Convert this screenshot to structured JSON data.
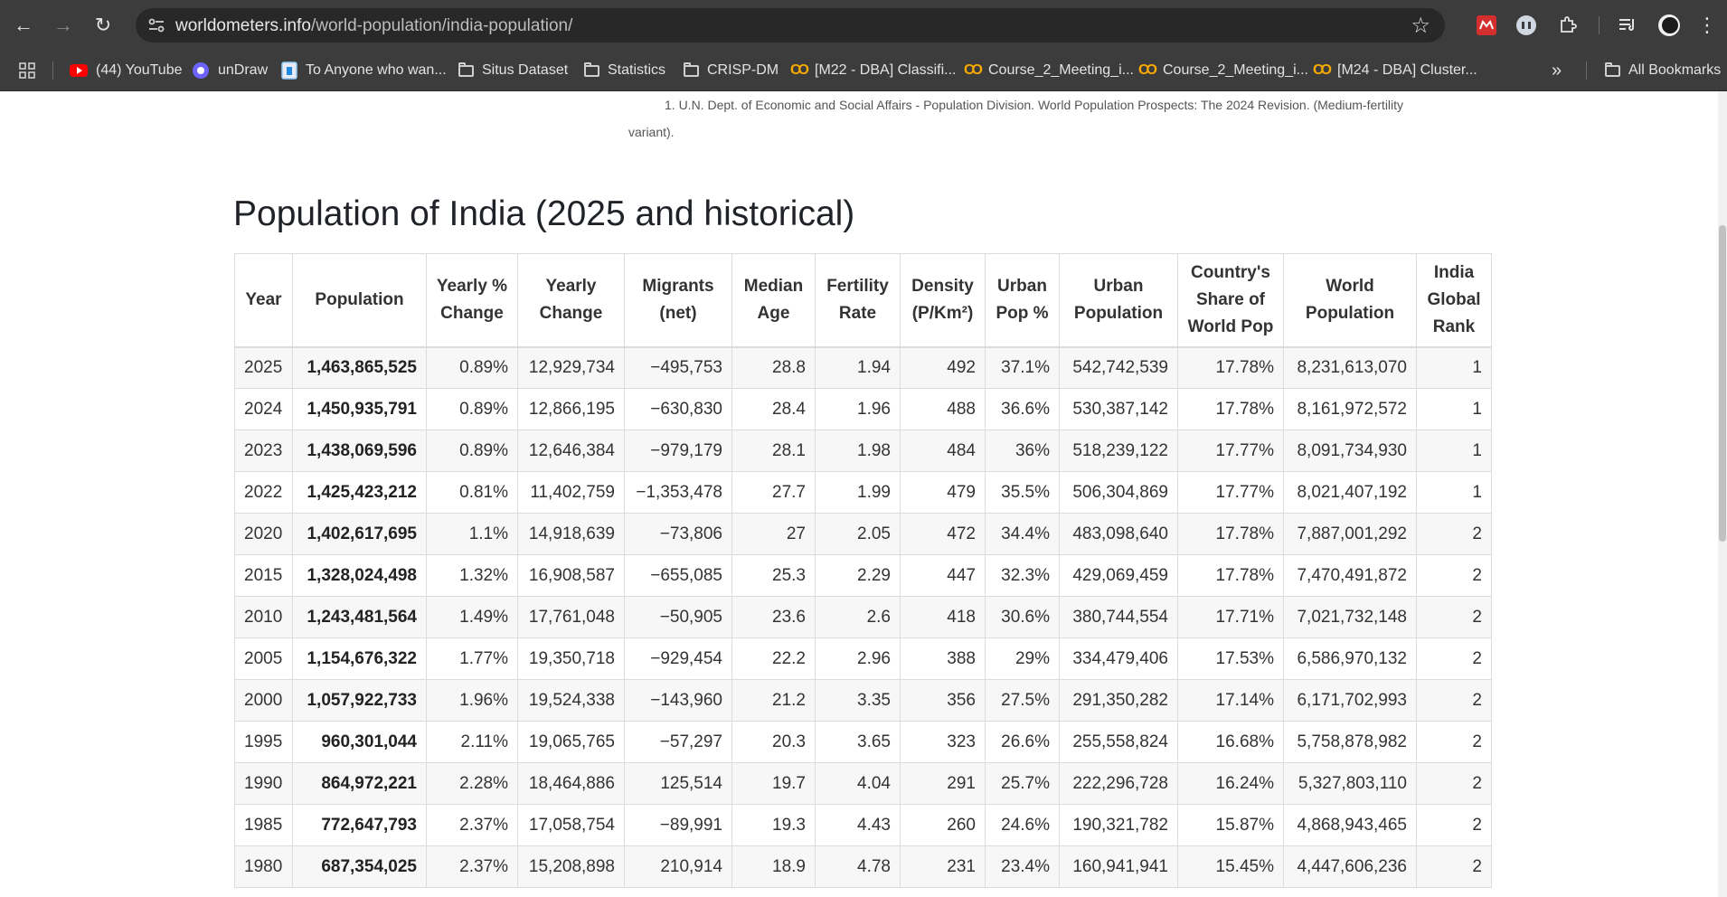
{
  "browser": {
    "url_host": "worldometers.info",
    "url_path": "/world-population/india-population/",
    "bookmarks": [
      {
        "label": "(44) YouTube",
        "icon": "youtube-icon"
      },
      {
        "label": "unDraw",
        "icon": "undraw-icon"
      },
      {
        "label": "To Anyone who wan...",
        "icon": "page-icon"
      },
      {
        "label": "Situs Dataset",
        "icon": "folder-icon"
      },
      {
        "label": "Statistics",
        "icon": "folder-icon"
      },
      {
        "label": "CRISP-DM",
        "icon": "folder-icon"
      },
      {
        "label": "[M22 - DBA] Classifi...",
        "icon": "colab-icon"
      },
      {
        "label": "Course_2_Meeting_i...",
        "icon": "colab-icon"
      },
      {
        "label": "Course_2_Meeting_i...",
        "icon": "colab-icon"
      },
      {
        "label": "[M24 - DBA] Cluster...",
        "icon": "colab-icon"
      }
    ],
    "overflow_label": "»",
    "all_bookmarks_label": "All Bookmarks"
  },
  "page": {
    "footnote_line1": "1. U.N. Dept. of Economic and Social Affairs - Population Division. World Population Prospects: The 2024 Revision. (Medium-fertility",
    "footnote_line2": "variant).",
    "title": "Population of India (2025 and historical)"
  },
  "table": {
    "headers": [
      [
        "Year"
      ],
      [
        "Population"
      ],
      [
        "Yearly %",
        "Change"
      ],
      [
        "Yearly",
        "Change"
      ],
      [
        "Migrants",
        "(net)"
      ],
      [
        "Median",
        "Age"
      ],
      [
        "Fertility",
        "Rate"
      ],
      [
        "Density",
        "(P/Km²)"
      ],
      [
        "Urban",
        "Pop %"
      ],
      [
        "Urban",
        "Population"
      ],
      [
        "Country's",
        "Share of",
        "World Pop"
      ],
      [
        "World",
        "Population"
      ],
      [
        "India",
        "Global",
        "Rank"
      ]
    ],
    "rows": [
      [
        "2025",
        "1,463,865,525",
        "0.89%",
        "12,929,734",
        "−495,753",
        "28.8",
        "1.94",
        "492",
        "37.1%",
        "542,742,539",
        "17.78%",
        "8,231,613,070",
        "1"
      ],
      [
        "2024",
        "1,450,935,791",
        "0.89%",
        "12,866,195",
        "−630,830",
        "28.4",
        "1.96",
        "488",
        "36.6%",
        "530,387,142",
        "17.78%",
        "8,161,972,572",
        "1"
      ],
      [
        "2023",
        "1,438,069,596",
        "0.89%",
        "12,646,384",
        "−979,179",
        "28.1",
        "1.98",
        "484",
        "36%",
        "518,239,122",
        "17.77%",
        "8,091,734,930",
        "1"
      ],
      [
        "2022",
        "1,425,423,212",
        "0.81%",
        "11,402,759",
        "−1,353,478",
        "27.7",
        "1.99",
        "479",
        "35.5%",
        "506,304,869",
        "17.77%",
        "8,021,407,192",
        "1"
      ],
      [
        "2020",
        "1,402,617,695",
        "1.1%",
        "14,918,639",
        "−73,806",
        "27",
        "2.05",
        "472",
        "34.4%",
        "483,098,640",
        "17.78%",
        "7,887,001,292",
        "2"
      ],
      [
        "2015",
        "1,328,024,498",
        "1.32%",
        "16,908,587",
        "−655,085",
        "25.3",
        "2.29",
        "447",
        "32.3%",
        "429,069,459",
        "17.78%",
        "7,470,491,872",
        "2"
      ],
      [
        "2010",
        "1,243,481,564",
        "1.49%",
        "17,761,048",
        "−50,905",
        "23.6",
        "2.6",
        "418",
        "30.6%",
        "380,744,554",
        "17.71%",
        "7,021,732,148",
        "2"
      ],
      [
        "2005",
        "1,154,676,322",
        "1.77%",
        "19,350,718",
        "−929,454",
        "22.2",
        "2.96",
        "388",
        "29%",
        "334,479,406",
        "17.53%",
        "6,586,970,132",
        "2"
      ],
      [
        "2000",
        "1,057,922,733",
        "1.96%",
        "19,524,338",
        "−143,960",
        "21.2",
        "3.35",
        "356",
        "27.5%",
        "291,350,282",
        "17.14%",
        "6,171,702,993",
        "2"
      ],
      [
        "1995",
        "960,301,044",
        "2.11%",
        "19,065,765",
        "−57,297",
        "20.3",
        "3.65",
        "323",
        "26.6%",
        "255,558,824",
        "16.68%",
        "5,758,878,982",
        "2"
      ],
      [
        "1990",
        "864,972,221",
        "2.28%",
        "18,464,886",
        "125,514",
        "19.7",
        "4.04",
        "291",
        "25.7%",
        "222,296,728",
        "16.24%",
        "5,327,803,110",
        "2"
      ],
      [
        "1985",
        "772,647,793",
        "2.37%",
        "17,058,754",
        "−89,991",
        "19.3",
        "4.43",
        "260",
        "24.6%",
        "190,321,782",
        "15.87%",
        "4,868,943,465",
        "2"
      ],
      [
        "1980",
        "687,354,025",
        "2.37%",
        "15,208,898",
        "210,914",
        "18.9",
        "4.78",
        "231",
        "23.4%",
        "160,941,941",
        "15.45%",
        "4,447,606,236",
        "2"
      ]
    ]
  }
}
